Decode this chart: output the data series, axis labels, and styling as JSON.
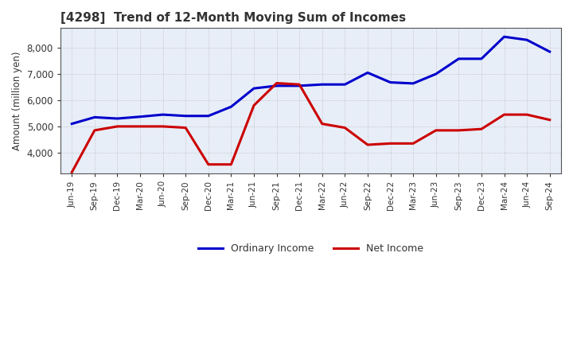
{
  "title": "[4298]  Trend of 12-Month Moving Sum of Incomes",
  "ylabel": "Amount (million yen)",
  "x_labels": [
    "Jun-19",
    "Sep-19",
    "Dec-19",
    "Mar-20",
    "Jun-20",
    "Sep-20",
    "Dec-20",
    "Mar-21",
    "Jun-21",
    "Sep-21",
    "Dec-21",
    "Mar-22",
    "Jun-22",
    "Sep-22",
    "Dec-22",
    "Mar-23",
    "Jun-23",
    "Sep-23",
    "Dec-23",
    "Mar-24",
    "Jun-24",
    "Sep-24"
  ],
  "ordinary_income": [
    5100,
    5350,
    5300,
    5370,
    5450,
    5400,
    5400,
    5750,
    6450,
    6550,
    6550,
    6600,
    6600,
    7050,
    6680,
    6640,
    7000,
    7580,
    7580,
    8420,
    8300,
    7850
  ],
  "net_income": [
    3250,
    4850,
    5000,
    5000,
    5000,
    4950,
    3550,
    3550,
    5800,
    6650,
    6600,
    5100,
    4950,
    4300,
    4350,
    4350,
    4850,
    4850,
    4900,
    5450,
    5450,
    5250
  ],
  "ordinary_income_color": "#0000CC",
  "net_income_color": "#CC0000",
  "ylim_min": 3200,
  "ylim_max": 8750,
  "yticks": [
    4000,
    5000,
    6000,
    7000,
    8000
  ],
  "plot_bg_color": "#E8EEF8",
  "fig_bg_color": "#FFFFFF",
  "grid_color": "#AAAAAA",
  "title_color": "#333333",
  "legend_ordinary": "Ordinary Income",
  "legend_net": "Net Income",
  "line_width": 2.2
}
